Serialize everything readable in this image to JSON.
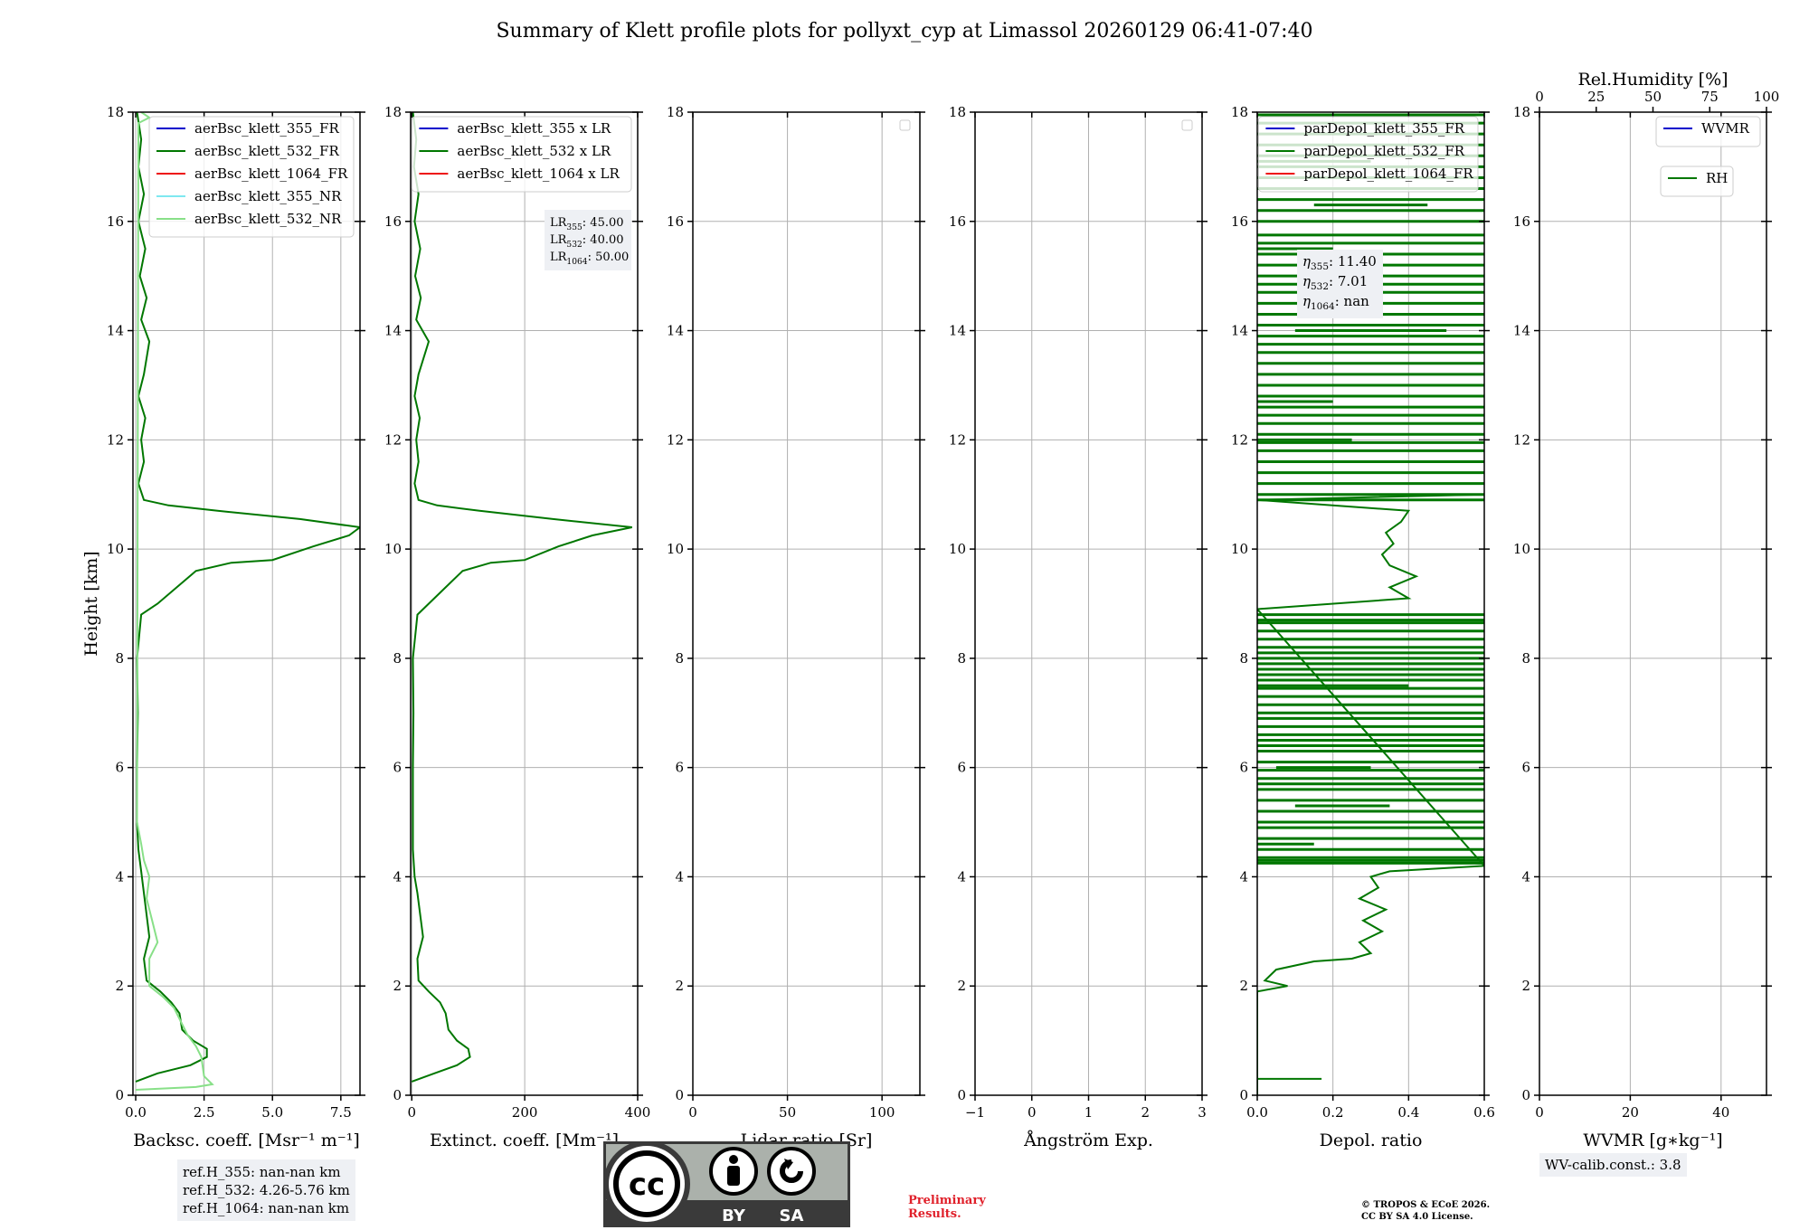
{
  "title": "Summary of Klett profile plots for pollyxt_cyp at Limassol 20260129 06:41-07:40",
  "colors": {
    "blue": "#0000cc",
    "green": "#007700",
    "red": "#ee1111",
    "cyan": "#7fe8f0",
    "lightgreen": "#88e088",
    "grid": "#b0b0b0"
  },
  "chart_data": [
    {
      "type": "line",
      "ylabel": "Height [km]",
      "xlabel": "Backsc. coeff. [Msr⁻¹ m⁻¹]",
      "xlim": [
        -0.1,
        8.2
      ],
      "ylim": [
        0,
        18
      ],
      "xticks": [
        "0.0",
        "2.5",
        "5.0",
        "7.5"
      ],
      "xtick_values": [
        0,
        2.5,
        5,
        7.5
      ],
      "yticks": [
        "0",
        "2",
        "4",
        "6",
        "8",
        "10",
        "12",
        "14",
        "16",
        "18"
      ],
      "legend": [
        "aerBsc_klett_355_FR",
        "aerBsc_klett_532_FR",
        "aerBsc_klett_1064_FR",
        "aerBsc_klett_355_NR",
        "aerBsc_klett_532_NR"
      ],
      "legend_colors": [
        "blue",
        "green",
        "red",
        "cyan",
        "lightgreen"
      ],
      "series": [
        {
          "name": "aerBsc_klett_532_FR",
          "color": "green",
          "points": [
            [
              0.0,
              0.25
            ],
            [
              0.8,
              0.4
            ],
            [
              2.0,
              0.55
            ],
            [
              2.6,
              0.7
            ],
            [
              2.6,
              0.85
            ],
            [
              2.1,
              1.0
            ],
            [
              1.7,
              1.2
            ],
            [
              1.6,
              1.5
            ],
            [
              1.3,
              1.7
            ],
            [
              0.9,
              1.9
            ],
            [
              0.4,
              2.1
            ],
            [
              0.3,
              2.5
            ],
            [
              0.5,
              2.9
            ],
            [
              0.4,
              3.3
            ],
            [
              0.3,
              3.7
            ],
            [
              0.2,
              4.1
            ],
            [
              0.1,
              4.5
            ],
            [
              0.05,
              5
            ],
            [
              0.05,
              6
            ],
            [
              0.08,
              7
            ],
            [
              0.05,
              8
            ],
            [
              0.2,
              8.8
            ],
            [
              0.8,
              9.0
            ],
            [
              1.5,
              9.3
            ],
            [
              2.2,
              9.6
            ],
            [
              3.5,
              9.75
            ],
            [
              5.0,
              9.8
            ],
            [
              6.5,
              10.05
            ],
            [
              7.8,
              10.25
            ],
            [
              8.2,
              10.4
            ],
            [
              6.0,
              10.55
            ],
            [
              3.0,
              10.7
            ],
            [
              1.2,
              10.8
            ],
            [
              0.3,
              10.9
            ],
            [
              0.1,
              11.2
            ],
            [
              0.3,
              11.6
            ],
            [
              0.2,
              12.0
            ],
            [
              0.35,
              12.4
            ],
            [
              0.1,
              12.8
            ],
            [
              0.3,
              13.2
            ],
            [
              0.5,
              13.8
            ],
            [
              0.2,
              14.2
            ],
            [
              0.4,
              14.6
            ],
            [
              0.15,
              15.0
            ],
            [
              0.35,
              15.5
            ],
            [
              0.1,
              16.0
            ],
            [
              0.3,
              16.5
            ],
            [
              0.1,
              17.0
            ],
            [
              0.2,
              17.5
            ],
            [
              0.05,
              18.0
            ]
          ]
        },
        {
          "name": "aerBsc_klett_532_NR",
          "color": "lightgreen",
          "points": [
            [
              0.0,
              0.1
            ],
            [
              2.2,
              0.15
            ],
            [
              2.8,
              0.2
            ],
            [
              2.5,
              0.35
            ],
            [
              2.4,
              0.7
            ],
            [
              2.2,
              0.9
            ],
            [
              1.9,
              1.1
            ],
            [
              1.7,
              1.3
            ],
            [
              1.4,
              1.6
            ],
            [
              1.0,
              1.8
            ],
            [
              0.5,
              2.0
            ],
            [
              0.5,
              2.5
            ],
            [
              0.8,
              2.8
            ],
            [
              0.6,
              3.2
            ],
            [
              0.4,
              3.6
            ],
            [
              0.5,
              4.0
            ],
            [
              0.3,
              4.3
            ],
            [
              0.2,
              4.6
            ],
            [
              0.05,
              5.0
            ],
            [
              0.1,
              17.8
            ],
            [
              0.5,
              17.9
            ],
            [
              0.2,
              18
            ]
          ]
        }
      ]
    },
    {
      "type": "line",
      "xlabel": "Extinct. coeff. [Mm⁻¹]",
      "xlim": [
        -2,
        400
      ],
      "ylim": [
        0,
        18
      ],
      "xticks": [
        "0",
        "200",
        "400"
      ],
      "xtick_values": [
        0,
        200,
        400
      ],
      "yticks": [
        "0",
        "2",
        "4",
        "6",
        "8",
        "10",
        "12",
        "14",
        "16",
        "18"
      ],
      "legend": [
        "aerBsc_klett_355 x LR",
        "aerBsc_klett_532 x LR",
        "aerBsc_klett_1064 x LR"
      ],
      "legend_colors": [
        "blue",
        "green",
        "red"
      ],
      "annotation": [
        {
          "sym": "LR",
          "sub": "355",
          "val": ": 45.00"
        },
        {
          "sym": "LR",
          "sub": "532",
          "val": ": 40.00"
        },
        {
          "sym": "LR",
          "sub": "1064",
          "val": ": 50.00"
        }
      ],
      "series": [
        {
          "name": "aerBsc_klett_532 x LR",
          "color": "green",
          "points": [
            [
              0,
              0.25
            ],
            [
              40,
              0.4
            ],
            [
              80,
              0.55
            ],
            [
              103,
              0.7
            ],
            [
              100,
              0.85
            ],
            [
              80,
              1.0
            ],
            [
              65,
              1.2
            ],
            [
              60,
              1.5
            ],
            [
              50,
              1.7
            ],
            [
              30,
              1.9
            ],
            [
              12,
              2.1
            ],
            [
              10,
              2.5
            ],
            [
              20,
              2.9
            ],
            [
              15,
              3.3
            ],
            [
              10,
              3.7
            ],
            [
              5,
              4.0
            ],
            [
              2,
              4.5
            ],
            [
              2,
              6
            ],
            [
              3,
              7
            ],
            [
              2,
              8
            ],
            [
              10,
              8.8
            ],
            [
              30,
              9.0
            ],
            [
              60,
              9.3
            ],
            [
              90,
              9.6
            ],
            [
              140,
              9.75
            ],
            [
              200,
              9.8
            ],
            [
              260,
              10.05
            ],
            [
              320,
              10.25
            ],
            [
              390,
              10.4
            ],
            [
              250,
              10.55
            ],
            [
              120,
              10.7
            ],
            [
              45,
              10.8
            ],
            [
              12,
              10.9
            ],
            [
              5,
              11.2
            ],
            [
              12,
              11.6
            ],
            [
              8,
              12.0
            ],
            [
              14,
              12.4
            ],
            [
              5,
              12.8
            ],
            [
              12,
              13.2
            ],
            [
              30,
              13.8
            ],
            [
              8,
              14.2
            ],
            [
              16,
              14.6
            ],
            [
              6,
              15.0
            ],
            [
              15,
              15.5
            ],
            [
              5,
              16.0
            ],
            [
              12,
              16.5
            ],
            [
              4,
              17.0
            ],
            [
              8,
              17.5
            ],
            [
              2,
              18.0
            ]
          ]
        }
      ]
    },
    {
      "type": "line",
      "xlabel": "Lidar ratio [Sr]",
      "xlim": [
        0,
        120
      ],
      "ylim": [
        0,
        18
      ],
      "xticks": [
        "0",
        "50",
        "100"
      ],
      "xtick_values": [
        0,
        50,
        100
      ],
      "yticks": [
        "0",
        "2",
        "4",
        "6",
        "8",
        "10",
        "12",
        "14",
        "16",
        "18"
      ],
      "series": []
    },
    {
      "type": "line",
      "xlabel": "Ångström Exp.",
      "xlim": [
        -1,
        3
      ],
      "ylim": [
        0,
        18
      ],
      "xticks": [
        "−1",
        "0",
        "1",
        "2",
        "3"
      ],
      "xtick_values": [
        -1,
        0,
        1,
        2,
        3
      ],
      "yticks": [
        "0",
        "2",
        "4",
        "6",
        "8",
        "10",
        "12",
        "14",
        "16",
        "18"
      ],
      "series": []
    },
    {
      "type": "line",
      "xlabel": "Depol. ratio",
      "xlim": [
        0,
        0.6
      ],
      "ylim": [
        0,
        18
      ],
      "xticks": [
        "0.0",
        "0.2",
        "0.4",
        "0.6"
      ],
      "xtick_values": [
        0,
        0.2,
        0.4,
        0.6
      ],
      "yticks": [
        "0",
        "2",
        "4",
        "6",
        "8",
        "10",
        "12",
        "14",
        "16",
        "18"
      ],
      "legend": [
        "parDepol_klett_355_FR",
        "parDepol_klett_532_FR",
        "parDepol_klett_1064_FR"
      ],
      "legend_colors": [
        "blue",
        "green",
        "red"
      ],
      "annotation": [
        {
          "sym": "η",
          "sub": "355",
          "val": ": 11.40"
        },
        {
          "sym": "η",
          "sub": "532",
          "val": ": 7.01"
        },
        {
          "sym": "η",
          "sub": "1064",
          "val": ": nan"
        }
      ],
      "series": [
        {
          "name": "parDepol_klett_532_FR",
          "color": "green",
          "points": [
            [
              0.0,
              0.0
            ],
            [
              0.0,
              0.3
            ],
            [
              0.17,
              0.3
            ],
            [
              0.0,
              0.3
            ],
            [
              0.0,
              1.9
            ],
            [
              0.08,
              2.0
            ],
            [
              0.02,
              2.1
            ],
            [
              0.05,
              2.3
            ],
            [
              0.15,
              2.45
            ],
            [
              0.25,
              2.5
            ],
            [
              0.3,
              2.6
            ],
            [
              0.27,
              2.8
            ],
            [
              0.33,
              3.0
            ],
            [
              0.28,
              3.2
            ],
            [
              0.34,
              3.4
            ],
            [
              0.27,
              3.6
            ],
            [
              0.32,
              3.8
            ],
            [
              0.3,
              4.0
            ],
            [
              0.35,
              4.1
            ],
            [
              0.6,
              4.2
            ],
            [
              0.0,
              8.9
            ],
            [
              0.4,
              9.1
            ],
            [
              0.35,
              9.3
            ],
            [
              0.42,
              9.5
            ],
            [
              0.35,
              9.7
            ],
            [
              0.33,
              9.9
            ],
            [
              0.36,
              10.1
            ],
            [
              0.34,
              10.3
            ],
            [
              0.38,
              10.5
            ],
            [
              0.4,
              10.7
            ],
            [
              0.0,
              10.9
            ],
            [
              0.6,
              11.0
            ]
          ]
        },
        {
          "name": "parDepol_klett_532_FR_noise",
          "color": "green",
          "bars": [
            4.25,
            4.3,
            4.35,
            4.5,
            4.7,
            4.9,
            5.0,
            5.2,
            5.4,
            5.6,
            5.7,
            5.8,
            5.95,
            6.1,
            6.3,
            6.4,
            6.5,
            6.6,
            6.75,
            6.9,
            7.0,
            7.15,
            7.3,
            7.45,
            7.6,
            7.7,
            7.8,
            7.9,
            8.0,
            8.1,
            8.2,
            8.35,
            8.5,
            8.65,
            8.7,
            8.8,
            10.9,
            11.0,
            11.2,
            11.4,
            11.6,
            11.8,
            11.95,
            12.1,
            12.3,
            12.45,
            12.6,
            12.8,
            13.0,
            13.2,
            13.4,
            13.6,
            13.75,
            13.9,
            14.1,
            14.3,
            14.5,
            14.7,
            14.85,
            15.0,
            15.2,
            15.4,
            15.6,
            15.75,
            16.0,
            16.2,
            16.4,
            16.6,
            16.8,
            17.0,
            17.2,
            17.4,
            17.6,
            17.8,
            17.95
          ],
          "partial": [
            [
              4.6,
              0.0,
              0.15
            ],
            [
              5.3,
              0.1,
              0.35
            ],
            [
              6.0,
              0.05,
              0.3
            ],
            [
              7.5,
              0.0,
              0.4
            ],
            [
              12.0,
              0.0,
              0.25
            ],
            [
              12.7,
              0.0,
              0.2
            ],
            [
              14.0,
              0.1,
              0.5
            ],
            [
              15.5,
              0.0,
              0.2
            ],
            [
              16.3,
              0.15,
              0.45
            ],
            [
              17.1,
              0.0,
              0.3
            ]
          ]
        }
      ]
    },
    {
      "type": "line",
      "xlabel": "WVMR [g∗kg⁻¹]",
      "top_xlabel": "Rel.Humidity [%]",
      "xlim": [
        0,
        50
      ],
      "ylim": [
        0,
        18
      ],
      "xticks": [
        "0",
        "20",
        "40"
      ],
      "xtick_values": [
        0,
        20,
        40
      ],
      "top_xticks": [
        "0",
        "25",
        "50",
        "75",
        "100"
      ],
      "top_xtick_values": [
        0,
        25,
        50,
        75,
        100
      ],
      "yticks": [
        "0",
        "2",
        "4",
        "6",
        "8",
        "10",
        "12",
        "14",
        "16",
        "18"
      ],
      "legend": [
        "WVMR"
      ],
      "legend_colors": [
        "blue"
      ],
      "legend2": [
        "RH"
      ],
      "legend2_colors": [
        "green"
      ],
      "series": []
    }
  ],
  "ref_heights": [
    "ref.H_355: nan-nan km",
    "ref.H_532: 4.26-5.76 km",
    "ref.H_1064: nan-nan km"
  ],
  "wv_calib": "WV-calib.const.: 3.8",
  "cc_badge": {
    "left": "BY",
    "right": "SA",
    "mark": "cc"
  },
  "preliminary": [
    "Preliminary",
    "Results."
  ],
  "copyright": [
    "© TROPOS & ECoE 2026.",
    "CC BY SA 4.0 License."
  ]
}
